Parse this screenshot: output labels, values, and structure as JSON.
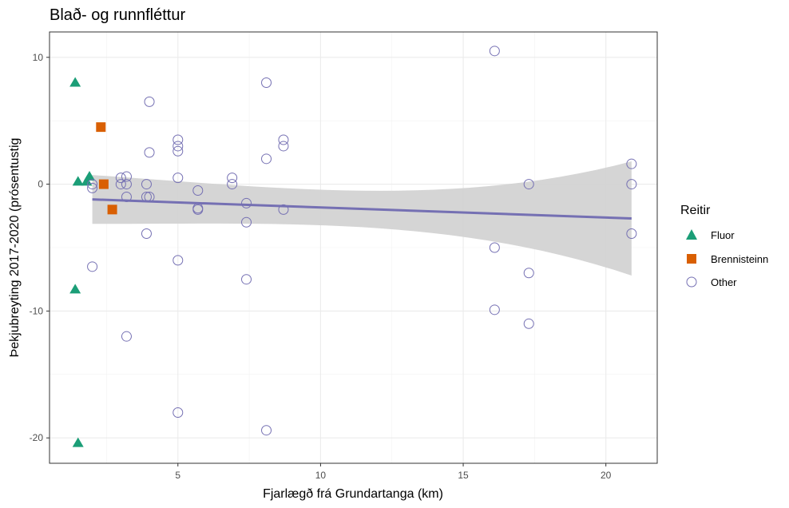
{
  "chart_data": {
    "type": "scatter",
    "title": "Blað- og runnfléttur",
    "xlabel": "Fjarlægð frá Grundartanga (km)",
    "ylabel": "Þekjubreyting 2017-2020 (prósentustig",
    "xlim": [
      0.5,
      21.8
    ],
    "ylim": [
      -22,
      12
    ],
    "x_ticks": [
      "5",
      "10",
      "15",
      "20"
    ],
    "y_ticks": [
      "10",
      "0",
      "-10",
      "-20"
    ],
    "grid": true,
    "legend": {
      "title": "Reitir",
      "position": "right",
      "entries": [
        "Fluor",
        "Brennisteinn",
        "Other"
      ]
    },
    "series": [
      {
        "name": "Fluor",
        "marker": "triangle",
        "color": "#1b9e77",
        "points": [
          [
            1.4,
            8
          ],
          [
            1.5,
            0.2
          ],
          [
            1.8,
            0.2
          ],
          [
            1.9,
            0.6
          ],
          [
            1.4,
            -8.3
          ],
          [
            1.5,
            -20.4
          ]
        ]
      },
      {
        "name": "Brennisteinn",
        "marker": "square",
        "color": "#d95f02",
        "points": [
          [
            2.3,
            4.5
          ],
          [
            2.4,
            0
          ],
          [
            2.7,
            -2
          ]
        ]
      },
      {
        "name": "Other",
        "marker": "circle-open",
        "color": "#7570b3",
        "points": [
          [
            2,
            0
          ],
          [
            2,
            -0.3
          ],
          [
            2,
            -6.5
          ],
          [
            3,
            0.5
          ],
          [
            3,
            0
          ],
          [
            3.2,
            0.6
          ],
          [
            3.2,
            0
          ],
          [
            3.2,
            -1
          ],
          [
            3.2,
            -12
          ],
          [
            3.9,
            0
          ],
          [
            3.9,
            -1
          ],
          [
            3.9,
            -3.9
          ],
          [
            4,
            -1
          ],
          [
            4,
            6.5
          ],
          [
            4,
            2.5
          ],
          [
            5,
            3.5
          ],
          [
            5,
            3
          ],
          [
            5,
            2.6
          ],
          [
            5,
            0.5
          ],
          [
            5,
            -6
          ],
          [
            5,
            -18
          ],
          [
            5.7,
            -0.5
          ],
          [
            5.7,
            -1.9
          ],
          [
            5.7,
            -2
          ],
          [
            6.9,
            0.5
          ],
          [
            6.9,
            0
          ],
          [
            7.4,
            -1.5
          ],
          [
            7.4,
            -3
          ],
          [
            7.4,
            -7.5
          ],
          [
            8.1,
            8
          ],
          [
            8.1,
            2
          ],
          [
            8.1,
            -19.4
          ],
          [
            8.7,
            3.5
          ],
          [
            8.7,
            3
          ],
          [
            8.7,
            -2
          ],
          [
            16.1,
            10.5
          ],
          [
            16.1,
            -5
          ],
          [
            16.1,
            -9.9
          ],
          [
            17.3,
            0
          ],
          [
            17.3,
            -7
          ],
          [
            17.3,
            -11
          ],
          [
            20.9,
            1.6
          ],
          [
            20.9,
            0
          ],
          [
            20.9,
            -3.9
          ]
        ]
      }
    ],
    "trend": {
      "color": "#7570b3",
      "band_color": "#d3d3d3",
      "x_range": [
        2,
        20.9
      ],
      "line": [
        -1.2,
        -2.7
      ],
      "band_upper": [
        1.2,
        1.8
      ],
      "band_lower": [
        -3.6,
        -7.2
      ]
    }
  }
}
